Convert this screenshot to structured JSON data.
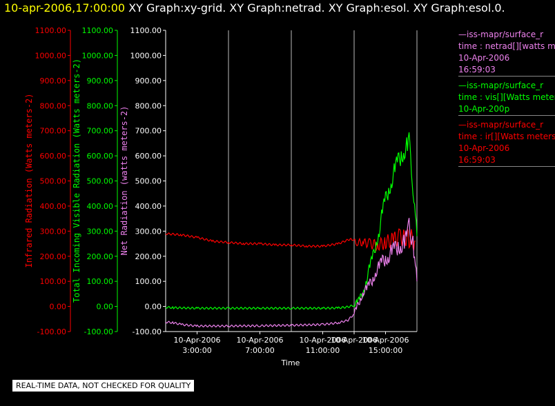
{
  "header": {
    "timestamp": "10-apr-2006,17:00:00",
    "graph_titles": [
      "XY Graph:xy-grid.",
      "XY Graph:netrad.",
      "XY Graph:esol.",
      "XY Graph:esol.0."
    ]
  },
  "legend": [
    {
      "lines": [
        "—iss-mapr/surface_r",
        "time : netrad[][watts m",
        "10-Apr-2006",
        "16:59:03"
      ],
      "color": "#ee82ee"
    },
    {
      "lines": [
        "—iss-mapr/surface_r",
        "time : vis[][Watts meter",
        "10-Apr-200p"
      ],
      "color": "#00ff00"
    },
    {
      "lines": [
        "—iss-mapr/surface_r",
        "time : ir[][Watts meters",
        "10-Apr-2006",
        "16:59:03"
      ],
      "color": "#ff0000"
    }
  ],
  "notice": "REAL-TIME DATA, NOT CHECKED FOR QUALITY",
  "chart_data": {
    "type": "line",
    "xlabel": "Time",
    "x_ticks": [
      {
        "date": "10-Apr-2006",
        "time": "3:00:00",
        "hour": 3
      },
      {
        "date": "10-Apr-2006",
        "time": "7:00:00",
        "hour": 7
      },
      {
        "date": "10-Apr-2006",
        "time": "11:00:00",
        "hour": 11
      },
      {
        "date": "10-Apr-2006",
        "time": "",
        "hour": 13
      },
      {
        "date": "10-Apr-2006",
        "time": "15:00:00",
        "hour": 15
      }
    ],
    "xlim_hours": [
      1,
      17
    ],
    "grid_vertical_hours": [
      5,
      9,
      13,
      17
    ],
    "y_ticks": [
      "-100.00",
      "0.00",
      "100.00",
      "200.00",
      "300.00",
      "400.00",
      "500.00",
      "600.00",
      "700.00",
      "800.00",
      "900.00",
      "1000.00",
      "1100.00"
    ],
    "ylim": [
      -100,
      1100
    ],
    "axes": [
      {
        "label": "Infrared Radiation (Watts meters-2)",
        "color": "#ff0000"
      },
      {
        "label": "Total Incoming Visible Radiation (Watts meters-2)",
        "color": "#00ff00"
      },
      {
        "label": "Net Radiation (watts meters-2)",
        "color": "#ee82ee"
      }
    ],
    "series": [
      {
        "name": "ir",
        "color": "#ff0000",
        "points": [
          [
            1,
            290
          ],
          [
            2,
            285
          ],
          [
            3,
            275
          ],
          [
            4,
            260
          ],
          [
            5,
            255
          ],
          [
            6,
            250
          ],
          [
            7,
            250
          ],
          [
            8,
            245
          ],
          [
            9,
            245
          ],
          [
            10,
            240
          ],
          [
            11,
            240
          ],
          [
            12,
            250
          ],
          [
            12.8,
            270
          ],
          [
            13.2,
            255
          ],
          [
            13.6,
            255
          ],
          [
            14,
            250
          ],
          [
            14.5,
            245
          ],
          [
            15,
            255
          ],
          [
            15.5,
            265
          ],
          [
            15.9,
            275
          ],
          [
            16.2,
            280
          ],
          [
            16.5,
            270
          ],
          [
            16.9,
            260
          ]
        ]
      },
      {
        "name": "vis",
        "color": "#00ff00",
        "points": [
          [
            1,
            -3
          ],
          [
            1.5,
            -5
          ],
          [
            3,
            -7
          ],
          [
            5,
            -7
          ],
          [
            7,
            -7
          ],
          [
            9,
            -7
          ],
          [
            11,
            -7
          ],
          [
            12,
            -6
          ],
          [
            12.6,
            -2
          ],
          [
            13,
            5
          ],
          [
            13.2,
            15
          ],
          [
            13.4,
            35
          ],
          [
            13.6,
            60
          ],
          [
            13.8,
            110
          ],
          [
            14,
            160
          ],
          [
            14.2,
            200
          ],
          [
            14.4,
            250
          ],
          [
            14.6,
            300
          ],
          [
            14.8,
            380
          ],
          [
            15,
            430
          ],
          [
            15.2,
            460
          ],
          [
            15.4,
            500
          ],
          [
            15.6,
            550
          ],
          [
            15.8,
            580
          ],
          [
            16,
            600
          ],
          [
            16.2,
            620
          ],
          [
            16.4,
            640
          ],
          [
            16.5,
            660
          ],
          [
            16.6,
            580
          ],
          [
            16.7,
            520
          ],
          [
            16.8,
            440
          ],
          [
            16.9,
            330
          ],
          [
            17,
            280
          ]
        ]
      },
      {
        "name": "netrad",
        "color": "#ee82ee",
        "points": [
          [
            1,
            -62
          ],
          [
            1.5,
            -65
          ],
          [
            2,
            -72
          ],
          [
            3,
            -78
          ],
          [
            5,
            -78
          ],
          [
            7,
            -77
          ],
          [
            9,
            -75
          ],
          [
            11,
            -72
          ],
          [
            12,
            -65
          ],
          [
            12.6,
            -55
          ],
          [
            13,
            -30
          ],
          [
            13.2,
            0
          ],
          [
            13.4,
            30
          ],
          [
            13.6,
            60
          ],
          [
            13.8,
            70
          ],
          [
            14,
            90
          ],
          [
            14.2,
            110
          ],
          [
            14.4,
            140
          ],
          [
            14.6,
            160
          ],
          [
            14.8,
            180
          ],
          [
            15,
            190
          ],
          [
            15.2,
            200
          ],
          [
            15.4,
            220
          ],
          [
            15.6,
            230
          ],
          [
            15.8,
            240
          ],
          [
            16,
            245
          ],
          [
            16.2,
            250
          ],
          [
            16.4,
            280
          ],
          [
            16.5,
            330
          ],
          [
            16.6,
            300
          ],
          [
            16.8,
            220
          ],
          [
            16.9,
            130
          ],
          [
            17,
            100
          ]
        ]
      }
    ]
  }
}
